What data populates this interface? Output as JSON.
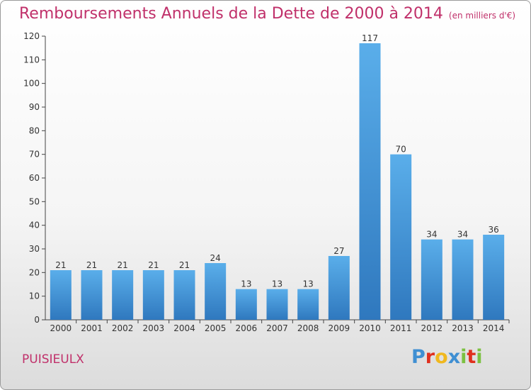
{
  "header": {
    "title": "Remboursements Annuels de la Dette de 2000 à 2014",
    "unit": "(en milliers d'€)"
  },
  "footer": {
    "town": "PUISIEULX",
    "logo": [
      "P",
      "r",
      "o",
      "x",
      "i",
      "t",
      "i"
    ]
  },
  "colors": {
    "accent": "#c0306a",
    "bar_top": "#5aaeea",
    "bar_bottom": "#2f78be",
    "logo": [
      "#3f8fd2",
      "#e0301e",
      "#f0b81e",
      "#3f8fd2",
      "#7cc142",
      "#e0301e",
      "#7cc142"
    ]
  },
  "chart_data": {
    "type": "bar",
    "title": "Remboursements Annuels de la Dette de 2000 à 2014",
    "unit": "(en milliers d'€)",
    "categories": [
      "2000",
      "2001",
      "2002",
      "2003",
      "2004",
      "2005",
      "2006",
      "2007",
      "2008",
      "2009",
      "2010",
      "2011",
      "2012",
      "2013",
      "2014"
    ],
    "values": [
      21,
      21,
      21,
      21,
      21,
      24,
      13,
      13,
      13,
      27,
      117,
      70,
      34,
      34,
      36
    ],
    "ylim": [
      0,
      120
    ],
    "yticks": [
      0,
      10,
      20,
      30,
      40,
      50,
      60,
      70,
      80,
      90,
      100,
      110,
      120
    ],
    "grid": false,
    "legend": "none"
  }
}
